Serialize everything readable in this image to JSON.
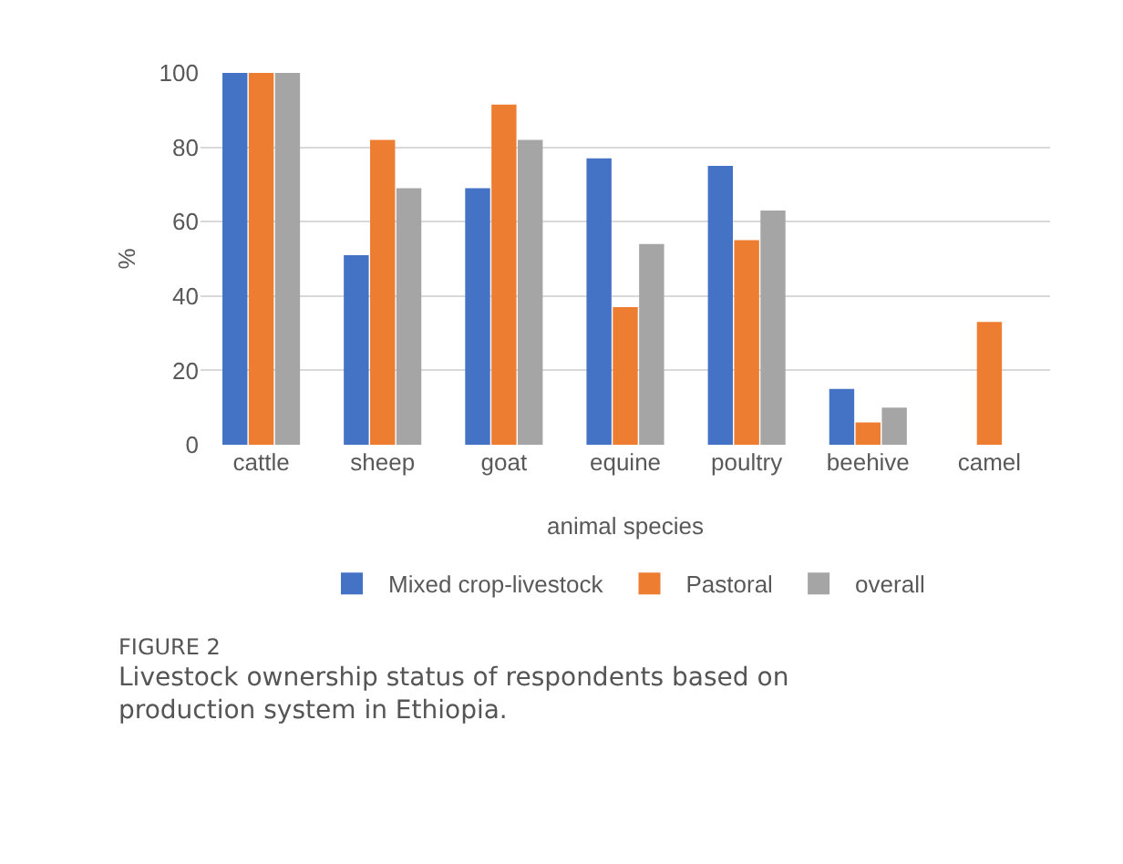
{
  "chart_data": {
    "type": "bar",
    "categories": [
      "cattle",
      "sheep",
      "goat",
      "equine",
      "poultry",
      "beehive",
      "camel"
    ],
    "series": [
      {
        "name": "Mixed crop-livestock",
        "color": "#4472c4",
        "values": [
          100,
          51,
          69,
          77,
          75,
          15,
          null
        ]
      },
      {
        "name": "Pastoral",
        "color": "#ed7d31",
        "values": [
          100,
          82,
          91.5,
          37,
          55,
          6,
          33
        ]
      },
      {
        "name": "overall",
        "color": "#a5a5a5",
        "values": [
          100,
          69,
          82,
          54,
          63,
          10,
          null
        ]
      }
    ],
    "xlabel": "animal species",
    "ylabel": "%",
    "ylim": [
      0,
      100
    ],
    "yticks": [
      0,
      20,
      40,
      60,
      80,
      100
    ],
    "grid": "y",
    "legend": "bottom",
    "annotations": [
      "FIGURE 2",
      "Livestock ownership status of respondents based on production system in Ethiopia."
    ]
  }
}
